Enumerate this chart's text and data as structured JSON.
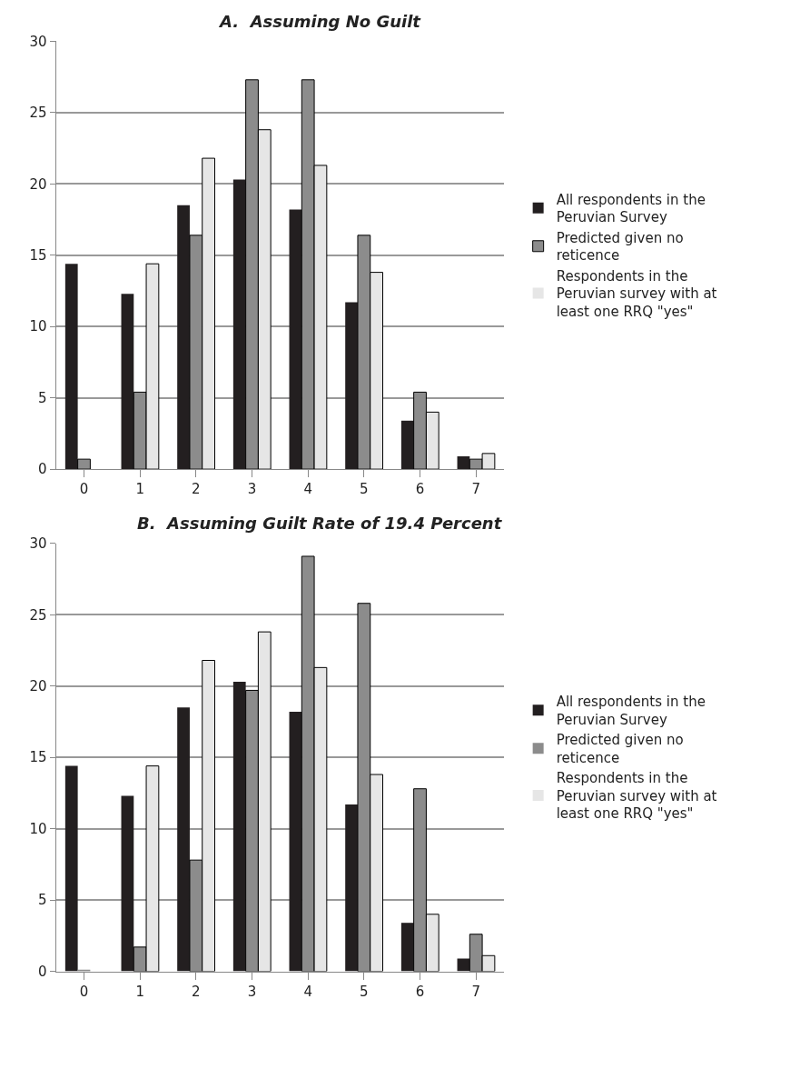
{
  "chart_data": [
    {
      "type": "bar",
      "title": "A.  Assuming No Guilt",
      "categories": [
        "0",
        "1",
        "2",
        "3",
        "4",
        "5",
        "6",
        "7"
      ],
      "series": [
        {
          "name": "All respondents in the Peruvian Survey",
          "color": "#231f20",
          "values": [
            14.4,
            12.3,
            18.5,
            20.3,
            18.2,
            11.7,
            3.4,
            0.9
          ]
        },
        {
          "name": "Predicted given no reticence",
          "color": "#8c8c8c",
          "values": [
            0.7,
            5.4,
            16.4,
            27.3,
            27.3,
            16.4,
            5.4,
            0.7
          ]
        },
        {
          "name": "Respondents in the Peruvian survey with at least one RRQ \"yes\"",
          "color": "#e6e6e6",
          "values": [
            0,
            14.4,
            21.8,
            23.8,
            21.3,
            13.8,
            4.0,
            1.1
          ]
        }
      ],
      "ylim": [
        0,
        30
      ],
      "yticks": [
        0,
        5,
        10,
        15,
        20,
        25,
        30
      ],
      "grid": "y",
      "legend": "right"
    },
    {
      "type": "bar",
      "title": "B.  Assuming Guilt Rate of 19.4 Percent",
      "categories": [
        "0",
        "1",
        "2",
        "3",
        "4",
        "5",
        "6",
        "7"
      ],
      "series": [
        {
          "name": "All respondents in the Peruvian Survey",
          "color": "#231f20",
          "values": [
            14.4,
            12.3,
            18.5,
            20.3,
            18.2,
            11.7,
            3.4,
            0.9
          ]
        },
        {
          "name": "Predicted given no reticence",
          "color": "#8c8c8c",
          "values": [
            0.1,
            1.7,
            7.8,
            19.7,
            29.1,
            25.8,
            12.8,
            2.6
          ]
        },
        {
          "name": "Respondents in the Peruvian survey with at least one RRQ \"yes\"",
          "color": "#e6e6e6",
          "values": [
            0,
            14.4,
            21.8,
            23.8,
            21.3,
            13.8,
            4.0,
            1.1
          ]
        }
      ],
      "ylim": [
        0,
        30
      ],
      "yticks": [
        0,
        5,
        10,
        15,
        20,
        25,
        30
      ],
      "grid": "y",
      "legend": "right"
    }
  ]
}
